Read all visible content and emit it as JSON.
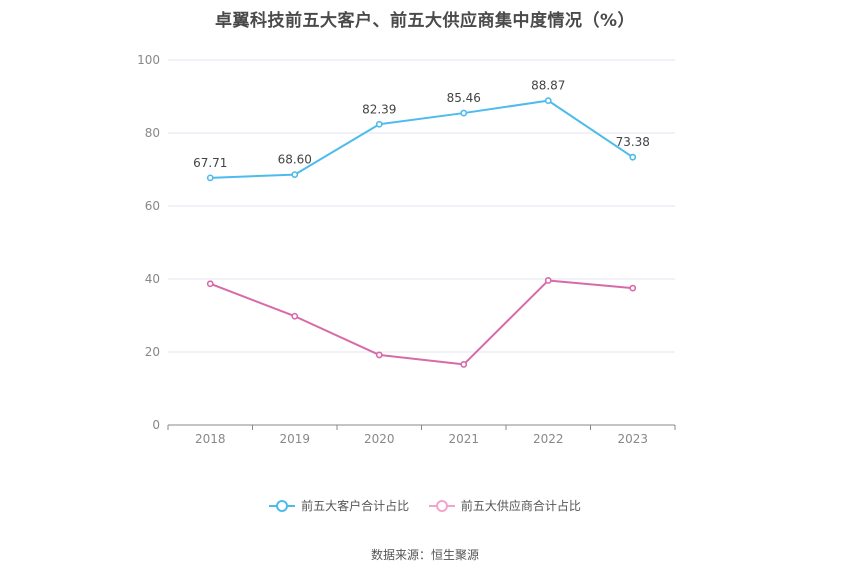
{
  "title": "卓翼科技前五大客户、前五大供应商集中度情况（%）",
  "source": "数据来源：恒生聚源",
  "legend": {
    "series0": "前五大客户合计占比",
    "series1": "前五大供应商合计占比"
  },
  "chart_data": {
    "type": "line",
    "title": "卓翼科技前五大客户、前五大供应商集中度情况（%）",
    "categories": [
      "2018",
      "2019",
      "2020",
      "2021",
      "2022",
      "2023"
    ],
    "ylim": [
      0,
      100
    ],
    "yticks": [
      0,
      20,
      40,
      60,
      80,
      100
    ],
    "grid": true,
    "legend_position": "bottom",
    "series": [
      {
        "name": "前五大客户合计占比",
        "color": "#4dbbec",
        "values": [
          67.71,
          68.6,
          82.39,
          85.46,
          88.87,
          73.38
        ],
        "show_labels": true
      },
      {
        "name": "前五大供应商合计占比",
        "color": "#d86aa9",
        "values": [
          38.7,
          29.8,
          19.2,
          16.6,
          39.6,
          37.5
        ],
        "show_labels": false
      }
    ]
  }
}
